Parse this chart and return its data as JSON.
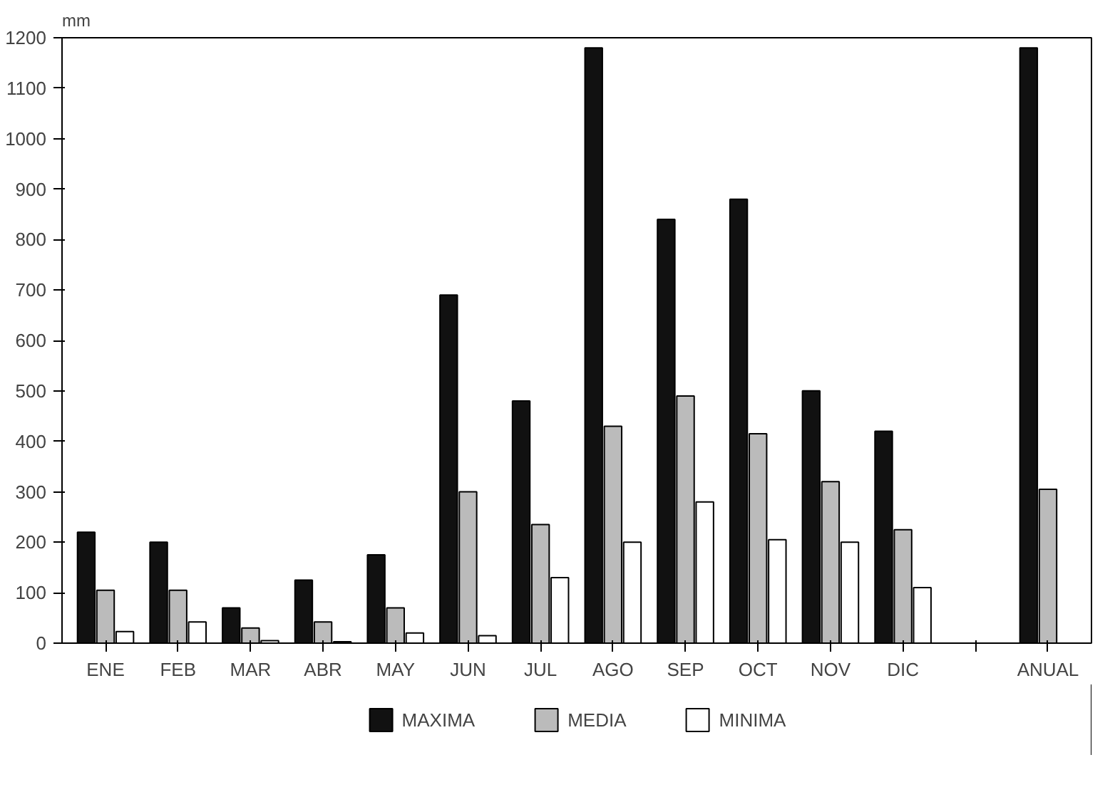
{
  "chart_data": {
    "type": "bar",
    "ylabel": "mm",
    "categories": [
      "ENE",
      "FEB",
      "MAR",
      "ABR",
      "MAY",
      "JUN",
      "JUL",
      "AGO",
      "SEP",
      "OCT",
      "NOV",
      "DIC",
      null,
      "ANUAL"
    ],
    "series": [
      {
        "name": "MAXIMA",
        "color": "#111111",
        "values": [
          220,
          200,
          70,
          125,
          175,
          690,
          480,
          1180,
          840,
          880,
          500,
          420,
          null,
          1180
        ]
      },
      {
        "name": "MEDIA",
        "color": "#bbbbbb",
        "values": [
          105,
          105,
          30,
          42,
          70,
          300,
          235,
          430,
          490,
          415,
          320,
          225,
          null,
          305
        ]
      },
      {
        "name": "MINIMA",
        "color": "#ffffff",
        "values": [
          23,
          42,
          5,
          3,
          20,
          15,
          130,
          200,
          280,
          205,
          200,
          110,
          null,
          null
        ]
      }
    ],
    "ylim": [
      0,
      1200
    ],
    "yticks": [
      0,
      100,
      200,
      300,
      400,
      500,
      600,
      700,
      800,
      900,
      1000,
      1100,
      1200
    ],
    "grid": false,
    "legend": "bottom"
  }
}
